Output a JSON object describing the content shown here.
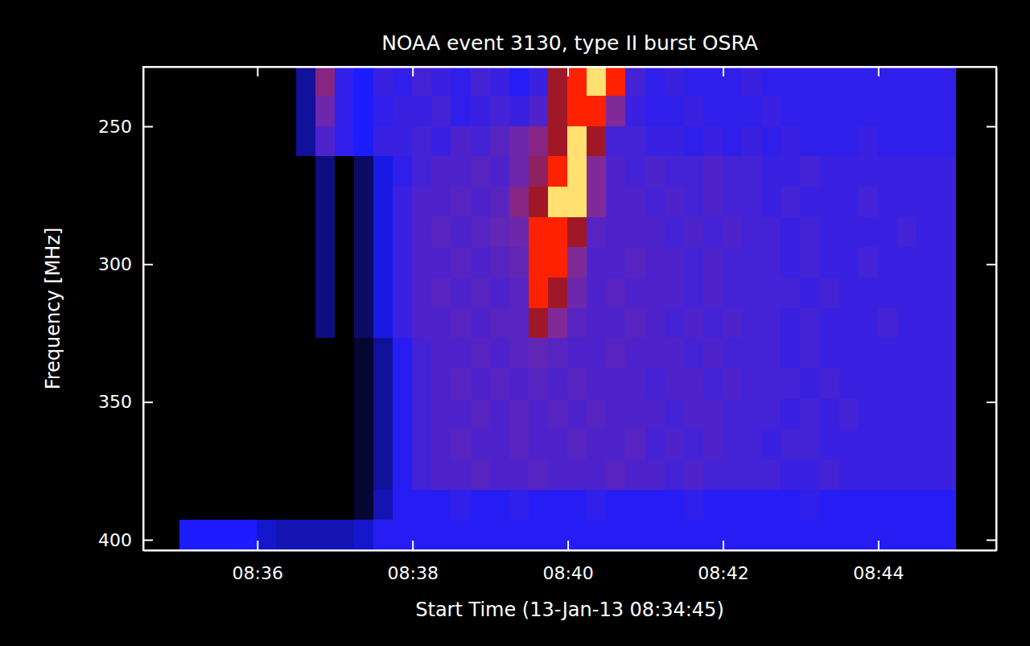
{
  "chart_data": {
    "type": "heatmap",
    "title": "NOAA event 3130, type II burst OSRA",
    "x_label": "Start Time (13-Jan-13 08:34:45)",
    "y_label": "Frequency [MHz]",
    "xlim": [
      514.53,
      525.52
    ],
    "ylim": [
      228.4,
      403.8
    ],
    "xticks": [
      {
        "value": 516,
        "label": "08:36"
      },
      {
        "value": 518,
        "label": "08:38"
      },
      {
        "value": 520,
        "label": "08:40"
      },
      {
        "value": 522,
        "label": "08:42"
      },
      {
        "value": 524,
        "label": "08:44"
      }
    ],
    "yticks": [
      250,
      300,
      350,
      400
    ],
    "x": [
      515,
      515.25,
      515.5,
      515.75,
      516,
      516.25,
      516.5,
      516.75,
      517,
      517.25,
      517.5,
      517.75,
      518,
      518.25,
      518.5,
      518.75,
      519,
      519.25,
      519.5,
      519.75,
      520,
      520.25,
      520.5,
      520.75,
      521,
      521.25,
      521.5,
      521.75,
      522,
      522.25,
      522.5,
      522.75,
      523,
      523.25,
      523.5,
      523.75,
      524,
      524.25,
      524.5,
      524.75,
      525
    ],
    "y": [
      228,
      239,
      250,
      261,
      272,
      283,
      294,
      305,
      316,
      327,
      338,
      349,
      360,
      371,
      382,
      393,
      404
    ],
    "zlim": [
      0,
      5
    ],
    "colors": [
      "#000000",
      "#1c1cff",
      "#802a98",
      "#a01828",
      "#ff2200",
      "#ffe070"
    ],
    "z": [
      [
        0,
        0,
        0,
        0,
        0,
        0,
        0.6,
        2.2,
        1.2,
        1.0,
        1.3,
        1.2,
        1.4,
        1.3,
        1.2,
        1.4,
        1.3,
        1.1,
        1.3,
        3,
        4,
        5,
        4,
        1.4,
        1.2,
        1.3,
        1.2,
        1.2,
        1.2,
        1.3,
        1.2,
        1.2,
        1.2,
        1.2,
        1.2,
        1.2,
        1.2,
        1.2,
        1.2,
        1.2
      ],
      [
        0,
        0,
        0,
        0,
        0,
        0,
        0.6,
        1.8,
        1.2,
        1.0,
        1.2,
        1.3,
        1.3,
        1.4,
        1.2,
        1.3,
        1.4,
        1.3,
        1.5,
        3,
        4,
        4,
        2,
        1.3,
        1.2,
        1.2,
        1.3,
        1.2,
        1.2,
        1.2,
        1.3,
        1.2,
        1.2,
        1.2,
        1.2,
        1.2,
        1.2,
        1.2,
        1.2,
        1.2
      ],
      [
        0,
        0,
        0,
        0,
        0,
        0,
        0.6,
        1.5,
        1.2,
        1.0,
        1.3,
        1.3,
        1.4,
        1.3,
        1.5,
        1.4,
        1.6,
        1.8,
        2.2,
        3,
        5,
        3,
        1.4,
        1.4,
        1.3,
        1.3,
        1.2,
        1.3,
        1.2,
        1.3,
        1.2,
        1.3,
        1.2,
        1.2,
        1.2,
        1.3,
        1.2,
        1.2,
        1.2,
        1.2
      ],
      [
        0,
        0,
        0,
        0,
        0,
        0,
        0,
        0.5,
        0,
        0.4,
        0.9,
        1.2,
        1.4,
        1.5,
        1.5,
        1.6,
        1.5,
        1.8,
        2.5,
        4,
        5,
        2,
        1.5,
        1.4,
        1.5,
        1.4,
        1.4,
        1.5,
        1.4,
        1.4,
        1.3,
        1.3,
        1.4,
        1.3,
        1.3,
        1.3,
        1.3,
        1.3,
        1.3,
        1.3
      ],
      [
        0,
        0,
        0,
        0,
        0,
        0,
        0,
        0.5,
        0,
        0.4,
        0.9,
        1.3,
        1.5,
        1.5,
        1.6,
        1.5,
        1.6,
        2.2,
        3,
        5,
        5,
        2,
        1.5,
        1.5,
        1.4,
        1.5,
        1.4,
        1.5,
        1.4,
        1.4,
        1.3,
        1.4,
        1.3,
        1.3,
        1.3,
        1.4,
        1.3,
        1.3,
        1.3,
        1.3
      ],
      [
        0,
        0,
        0,
        0,
        0,
        0,
        0,
        0.5,
        0,
        0.4,
        0.9,
        1.3,
        1.5,
        1.6,
        1.5,
        1.6,
        1.7,
        1.8,
        4,
        4,
        3,
        1.6,
        1.5,
        1.5,
        1.5,
        1.4,
        1.5,
        1.4,
        1.5,
        1.4,
        1.4,
        1.3,
        1.4,
        1.3,
        1.3,
        1.3,
        1.3,
        1.4,
        1.3,
        1.3
      ],
      [
        0,
        0,
        0,
        0,
        0,
        0,
        0,
        0.5,
        0,
        0.4,
        0.9,
        1.3,
        1.5,
        1.5,
        1.6,
        1.5,
        1.6,
        1.7,
        4,
        4,
        2,
        1.5,
        1.5,
        1.6,
        1.5,
        1.5,
        1.4,
        1.5,
        1.4,
        1.4,
        1.4,
        1.3,
        1.4,
        1.3,
        1.3,
        1.4,
        1.3,
        1.3,
        1.3,
        1.3
      ],
      [
        0,
        0,
        0,
        0,
        0,
        0,
        0,
        0.5,
        0,
        0.4,
        0.9,
        1.3,
        1.5,
        1.6,
        1.5,
        1.6,
        1.5,
        1.6,
        4,
        3,
        1.8,
        1.5,
        1.6,
        1.5,
        1.5,
        1.5,
        1.4,
        1.5,
        1.4,
        1.4,
        1.4,
        1.4,
        1.3,
        1.4,
        1.3,
        1.3,
        1.3,
        1.3,
        1.3,
        1.3
      ],
      [
        0,
        0,
        0,
        0,
        0,
        0,
        0,
        0.5,
        0,
        0.4,
        0.9,
        1.3,
        1.5,
        1.5,
        1.6,
        1.5,
        1.6,
        1.6,
        3,
        2,
        1.6,
        1.5,
        1.5,
        1.6,
        1.5,
        1.4,
        1.5,
        1.4,
        1.5,
        1.4,
        1.4,
        1.3,
        1.4,
        1.3,
        1.3,
        1.3,
        1.4,
        1.3,
        1.3,
        1.3
      ],
      [
        0,
        0,
        0,
        0,
        0,
        0,
        0,
        0,
        0,
        0.2,
        0.6,
        1.1,
        1.4,
        1.5,
        1.5,
        1.6,
        1.5,
        1.6,
        1.7,
        1.6,
        1.5,
        1.5,
        1.6,
        1.5,
        1.5,
        1.5,
        1.4,
        1.5,
        1.4,
        1.4,
        1.4,
        1.3,
        1.4,
        1.3,
        1.3,
        1.3,
        1.3,
        1.3,
        1.3,
        1.3
      ],
      [
        0,
        0,
        0,
        0,
        0,
        0,
        0,
        0,
        0,
        0.2,
        0.6,
        1.1,
        1.4,
        1.5,
        1.6,
        1.5,
        1.6,
        1.5,
        1.6,
        1.5,
        1.6,
        1.5,
        1.5,
        1.5,
        1.4,
        1.5,
        1.5,
        1.4,
        1.5,
        1.4,
        1.4,
        1.4,
        1.3,
        1.4,
        1.3,
        1.3,
        1.3,
        1.3,
        1.3,
        1.3
      ],
      [
        0,
        0,
        0,
        0,
        0,
        0,
        0,
        0,
        0,
        0.2,
        0.6,
        1.1,
        1.4,
        1.5,
        1.5,
        1.6,
        1.5,
        1.6,
        1.5,
        1.6,
        1.5,
        1.6,
        1.5,
        1.5,
        1.5,
        1.4,
        1.5,
        1.5,
        1.4,
        1.4,
        1.4,
        1.3,
        1.4,
        1.3,
        1.4,
        1.3,
        1.3,
        1.3,
        1.3,
        1.3
      ],
      [
        0,
        0,
        0,
        0,
        0,
        0,
        0,
        0,
        0,
        0.2,
        0.6,
        1.1,
        1.4,
        1.5,
        1.6,
        1.5,
        1.5,
        1.6,
        1.5,
        1.5,
        1.6,
        1.5,
        1.5,
        1.6,
        1.4,
        1.5,
        1.4,
        1.5,
        1.4,
        1.4,
        1.3,
        1.4,
        1.4,
        1.3,
        1.3,
        1.3,
        1.3,
        1.3,
        1.3,
        1.3
      ],
      [
        0,
        0,
        0,
        0,
        0,
        0,
        0,
        0,
        0,
        0.2,
        0.6,
        1.1,
        1.4,
        1.5,
        1.5,
        1.6,
        1.5,
        1.5,
        1.6,
        1.5,
        1.5,
        1.5,
        1.6,
        1.5,
        1.5,
        1.4,
        1.5,
        1.4,
        1.4,
        1.4,
        1.4,
        1.3,
        1.3,
        1.4,
        1.3,
        1.3,
        1.3,
        1.3,
        1.3,
        1.3
      ],
      [
        0,
        0,
        0,
        0,
        0,
        0,
        0,
        0,
        0,
        0.2,
        0.7,
        1.1,
        1.1,
        1.1,
        1.2,
        1.1,
        1.1,
        1.2,
        1.1,
        1.1,
        1.1,
        1.2,
        1.1,
        1.1,
        1.1,
        1.1,
        1.2,
        1.1,
        1.1,
        1.1,
        1.1,
        1.1,
        1.2,
        1.1,
        1.1,
        1.1,
        1.1,
        1.1,
        1.1,
        1.1
      ],
      [
        1,
        1,
        1,
        1,
        0.8,
        0.7,
        0.7,
        0.7,
        0.7,
        0.8,
        1.1,
        1.1,
        1.1,
        1.1,
        1.1,
        1.1,
        1.1,
        1.1,
        1.1,
        1.1,
        1.1,
        1.1,
        1.1,
        1.1,
        1.1,
        1.1,
        1.1,
        1.1,
        1.1,
        1.1,
        1.1,
        1.1,
        1.1,
        1.1,
        1.1,
        1.1,
        1.1,
        1.1,
        1.1,
        1.1
      ]
    ]
  }
}
